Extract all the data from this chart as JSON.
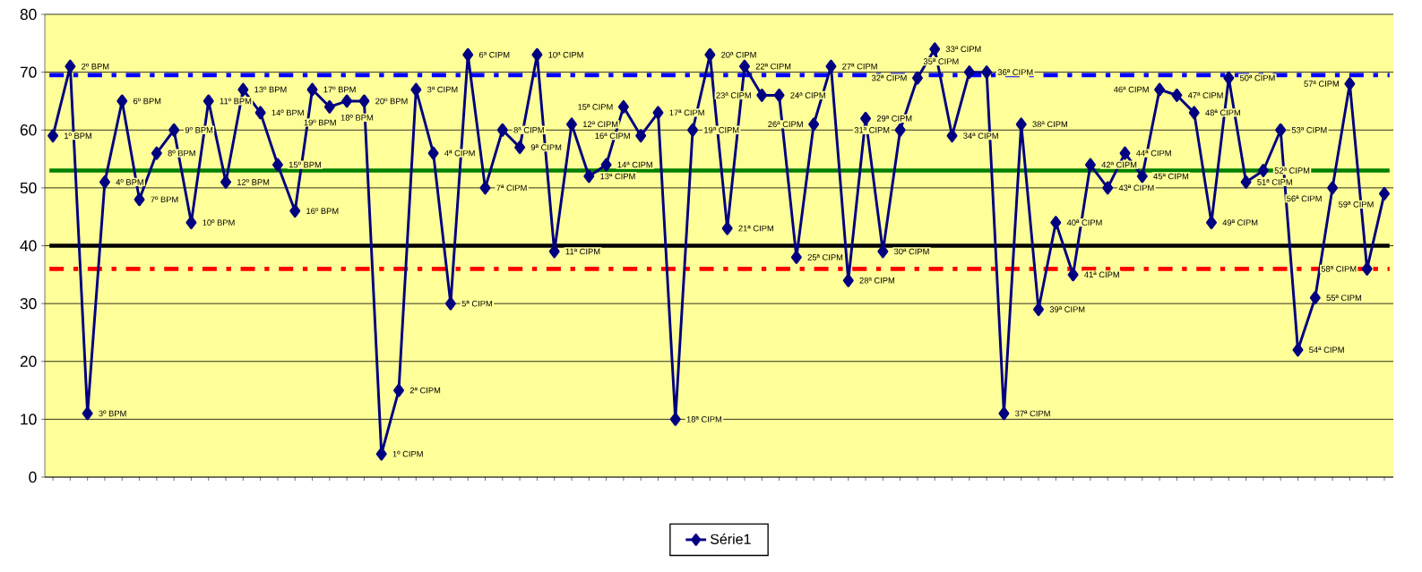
{
  "chart_data": {
    "type": "line",
    "categories": [
      null,
      null,
      null,
      null,
      null,
      null,
      null,
      null,
      null,
      null,
      null,
      null,
      null,
      null,
      null,
      null,
      null,
      null,
      null,
      null,
      null,
      null,
      null,
      null,
      null,
      null,
      null,
      null,
      null,
      null,
      null,
      null,
      null,
      null,
      null,
      null,
      null,
      null,
      null,
      null,
      null,
      null,
      null,
      null,
      null,
      null,
      null,
      null,
      null,
      null,
      null,
      null,
      null,
      null,
      null,
      null,
      null,
      null,
      null,
      null,
      null,
      null,
      null,
      null,
      null,
      null,
      null,
      null,
      null,
      null,
      null,
      null,
      null,
      null,
      null,
      null,
      null,
      null
    ],
    "series": [
      {
        "name": "Série1",
        "color": "#000080",
        "values": [
          59,
          71,
          11,
          51,
          65,
          48,
          56,
          60,
          44,
          65,
          51,
          67,
          63,
          54,
          46,
          67,
          64,
          65,
          65,
          4,
          15,
          67,
          56,
          30,
          73,
          50,
          60,
          57,
          73,
          39,
          61,
          52,
          54,
          64,
          59,
          63,
          10,
          60,
          73,
          43,
          71,
          66,
          66,
          38,
          61,
          71,
          34,
          62,
          39,
          60,
          69,
          74,
          59,
          70,
          70,
          11,
          61,
          29,
          44,
          35,
          54,
          50,
          56,
          52,
          67,
          66,
          63,
          44,
          69,
          51,
          53,
          60,
          22,
          31,
          50,
          68,
          36,
          49
        ]
      }
    ],
    "annotations": [
      "1º BPM",
      "2º BPM",
      "3º BPM",
      "4º BPM",
      "6º BPM",
      "7º BPM",
      "8º BPM",
      "9º BPM",
      "10º BPM",
      "11º BPM",
      "12º BPM",
      "13º BPM",
      "14º BPM",
      "15º BPM",
      "16º BPM",
      "17º BPM",
      "18º BPM",
      "19º BPM",
      "20º BPM",
      "1º CIPM",
      "2ª CIPM",
      "3ª CIPM",
      "4ª CIPM",
      "5ª CIPM",
      "6ª CIPM",
      "7ª CIPM",
      "8ª CIPM",
      "9ª CIPM",
      "10ª CIPM",
      "11ª CIPM",
      "12ª CIPM",
      "13ª CIPM",
      "14ª CIPM",
      "15ª CIPM",
      "16ª CIPM",
      "17ª CIPM",
      "18ª CIPM",
      "19ª CIPM",
      "20ª CIPM",
      "21ª CIPM",
      "22ª CIPM",
      "23ª CIPM",
      "24ª CIPM",
      "25ª CIPM",
      "26ª CIPM",
      "27ª CIPM",
      "28ª CIPM",
      "29ª CIPM",
      "30ª CIPM",
      "31ª CIPM",
      "32ª CIPM",
      "33ª CIPM",
      "34ª CIPM",
      "35ª CIPM",
      "36ª CIPM",
      "37ª CIPM",
      "38ª CIPM",
      "39ª CIPM",
      "40ª CIPM",
      "41ª CIPM",
      "42ª CIPM",
      "43ª CIPM",
      "44ª CIPM",
      "45ª CIPM",
      "46ª CIPM",
      "47ª CIPM",
      "48ª CIPM",
      "49ª CIPM",
      "50ª CIPM",
      "51ª CIPM",
      "52ª CIPM",
      "53ª CIPM",
      "54ª CIPM",
      "55ª CIPM",
      "56ª CIPM",
      "57ª CIPM",
      "58ª CIPM",
      "59ª CIPM"
    ],
    "ylim": [
      0,
      80
    ],
    "yticks": [
      0,
      10,
      20,
      30,
      40,
      50,
      60,
      70,
      80
    ],
    "ref_lines": [
      {
        "axis": "y",
        "value": 69.5,
        "color": "#0000ff",
        "line_style": "dashdot"
      },
      {
        "axis": "y",
        "value": 53,
        "color": "#008000",
        "line_style": "solid"
      },
      {
        "axis": "y",
        "value": 40,
        "color": "#000000",
        "line_style": "solid"
      },
      {
        "axis": "y",
        "value": 36,
        "color": "#ff0000",
        "line_style": "dashdot"
      }
    ],
    "grid": "y",
    "legend": "bottom",
    "marker": "diamond",
    "line_style": "solid",
    "tick_labels": "y"
  }
}
